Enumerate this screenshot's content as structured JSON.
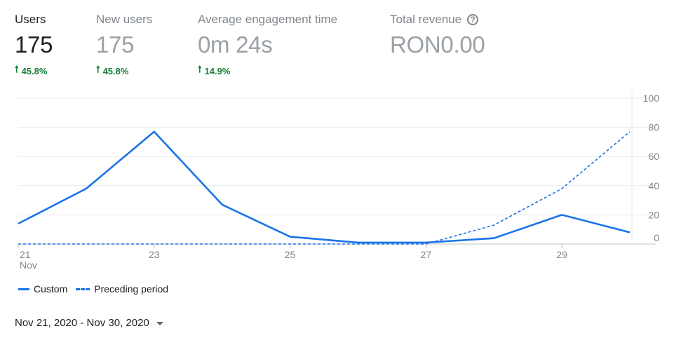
{
  "metrics": [
    {
      "title": "Users",
      "value": "175",
      "change": "45.8%",
      "active": true
    },
    {
      "title": "New users",
      "value": "175",
      "change": "45.8%",
      "active": false
    },
    {
      "title": "Average engagement time",
      "value": "0m 24s",
      "change": "14.9%",
      "active": false
    },
    {
      "title": "Total revenue",
      "value": "RON0.00",
      "change": "",
      "active": false
    }
  ],
  "help_icon_glyph": "?",
  "change_arrow": "🠕",
  "legend": {
    "current": "Custom",
    "previous": "Preceding period"
  },
  "date_range": "Nov 21, 2020 - Nov 30, 2020",
  "colors": {
    "accent": "#1a73e8",
    "positive": "#188038",
    "muted": "#80868b"
  },
  "chart_data": {
    "type": "line",
    "x": [
      "21",
      "22",
      "23",
      "24",
      "25",
      "26",
      "27",
      "28",
      "29",
      "30"
    ],
    "x_tick_labels": [
      {
        "label": "21",
        "sublabel": "Nov",
        "index": 0
      },
      {
        "label": "23",
        "index": 2
      },
      {
        "label": "25",
        "index": 4
      },
      {
        "label": "27",
        "index": 6
      },
      {
        "label": "29",
        "index": 8
      }
    ],
    "series": [
      {
        "name": "Custom",
        "style": "solid",
        "values": [
          14,
          38,
          77,
          27,
          5,
          1,
          1,
          4,
          20,
          8
        ]
      },
      {
        "name": "Preceding period",
        "style": "dashed",
        "values": [
          0,
          0,
          0,
          0,
          0,
          0,
          0,
          13,
          38,
          77
        ]
      }
    ],
    "y_ticks": [
      0,
      20,
      40,
      60,
      80,
      100
    ],
    "ylim": [
      0,
      100
    ],
    "grid": true,
    "y_axis_side": "right",
    "legend_position": "bottom-left"
  }
}
